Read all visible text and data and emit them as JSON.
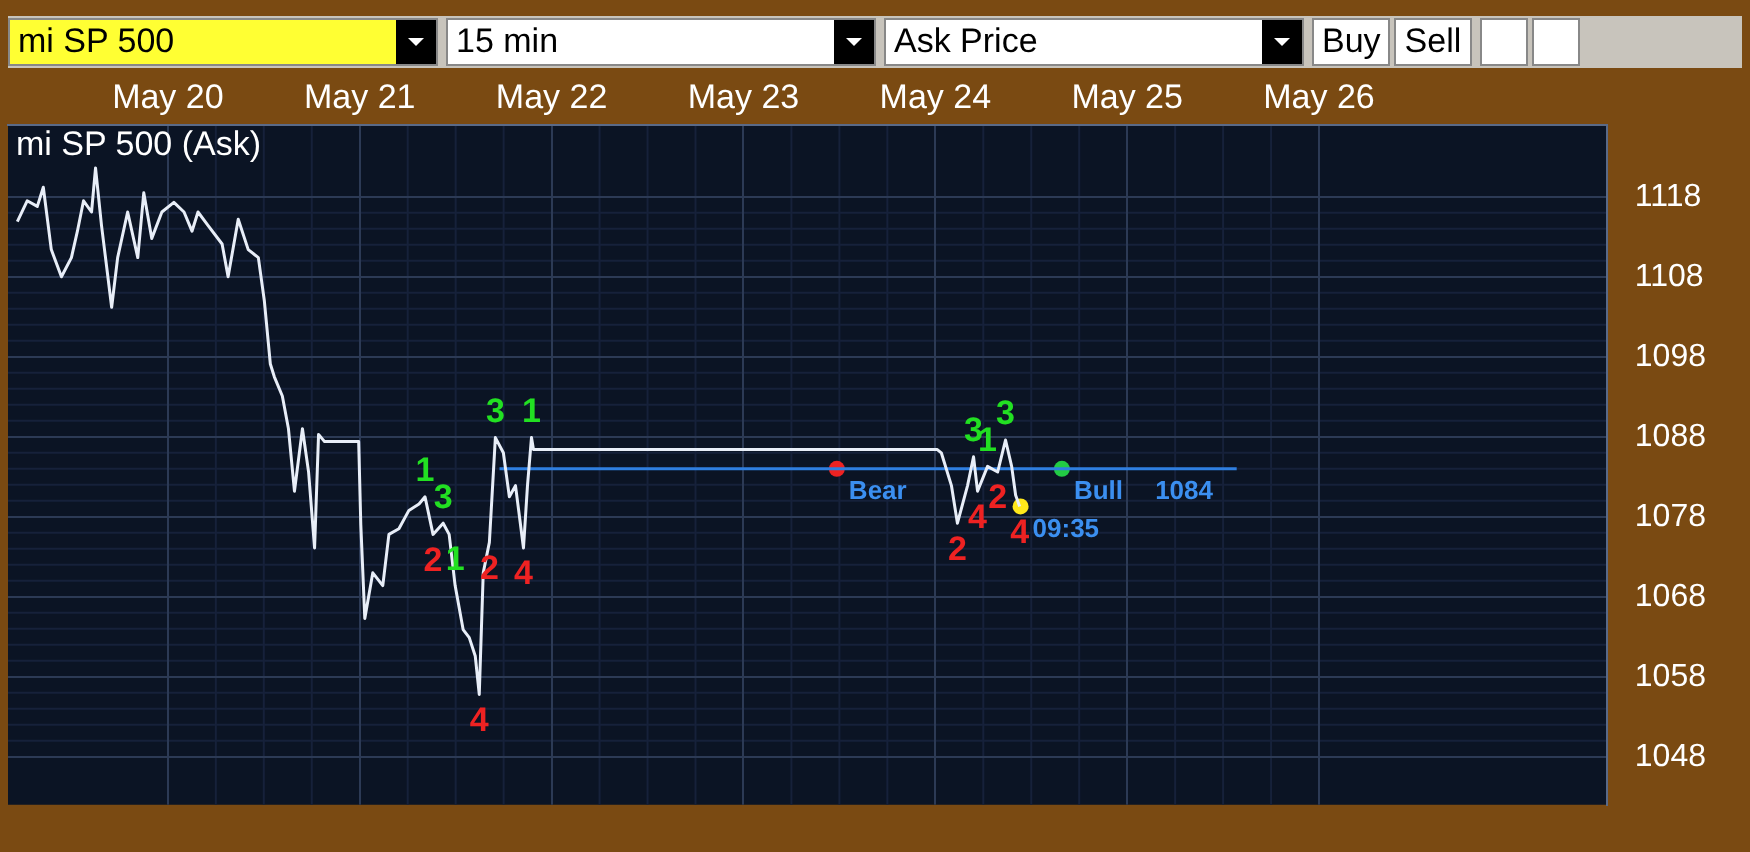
{
  "chart_data": {
    "type": "line",
    "title": "mi SP 500 (Ask)",
    "annotations": [
      "mi SP 500",
      "15 min",
      "Ask Price",
      "Buy",
      "Sell",
      {
        "text": "1",
        "x": "--05-21T08:10",
        "y": 1080.5
      },
      {
        "text": "2",
        "x": "--05-21T09:10",
        "y": 1075.8
      },
      {
        "text": "3",
        "x": "--05-21T10:26",
        "y": 1077.2
      },
      {
        "text": "1",
        "x": "--05-21T11:56",
        "y": 1069.4
      },
      {
        "text": "4",
        "x": "--05-21T14:57",
        "y": 1055.8
      },
      {
        "text": "2",
        "x": "--05-21T16:13",
        "y": 1074.8
      },
      {
        "text": "3",
        "x": "--05-21T16:58",
        "y": 1087.9
      },
      {
        "text": "4",
        "x": "--05-21T20:29",
        "y": 1074.1
      },
      {
        "text": "1",
        "x": "--05-21T21:29",
        "y": 1087.9
      },
      {
        "text": "2",
        "x": "--05-24T02:46",
        "y": 1077.2
      },
      {
        "text": "3",
        "x": "--05-24T04:47",
        "y": 1085.5
      },
      {
        "text": "4",
        "x": "--05-24T05:17",
        "y": 1081.2
      },
      {
        "text": "1",
        "x": "--05-24T06:32",
        "y": 1084.3
      },
      {
        "text": "2",
        "x": "--05-24T07:48",
        "y": 1083.6
      },
      {
        "text": "3",
        "x": "--05-24T08:47",
        "y": 1087.6
      },
      {
        "text": "4",
        "x": "--05-24T10:33",
        "y": 1079.3
      },
      {
        "text": "09:35",
        "x": "--05-24T10:40",
        "y": 1079.3
      },
      {
        "text": "Bear",
        "x": "--05-23T11:41",
        "y": 1084
      },
      {
        "text": "Bull",
        "x": "--05-24T15:50",
        "y": 1084
      },
      {
        "text": "1084",
        "x": "--05-25T02:00",
        "y": 1084
      }
    ],
    "xlim": [
      "--05-19T04:00",
      "--05-27T12:00"
    ],
    "xticks": [
      {
        "value": "--05-20",
        "label": "May 20"
      },
      {
        "value": "--05-21",
        "label": "May 21"
      },
      {
        "value": "--05-22",
        "label": "May 22"
      },
      {
        "value": "--05-23",
        "label": "May 23"
      },
      {
        "value": "--05-24",
        "label": "May 24"
      },
      {
        "value": "--05-25",
        "label": "May 25"
      },
      {
        "value": "--05-26",
        "label": "May 26"
      }
    ],
    "ylim": [
      1042,
      1127
    ],
    "yticks": [
      1048,
      1058,
      1068,
      1078,
      1088,
      1098,
      1108,
      1118
    ],
    "grid": true,
    "legend": false,
    "series": [
      {
        "type": "line",
        "color": "#e8eef8",
        "marker": "none",
        "x": [
          "--05-19T05:10",
          "--05-19T06:24",
          "--05-19T07:40",
          "--05-19T08:25",
          "--05-19T09:25",
          "--05-19T10:41",
          "--05-19T11:56",
          "--05-19T12:41",
          "--05-19T13:27",
          "--05-19T14:27",
          "--05-19T14:57",
          "--05-19T15:42",
          "--05-19T16:58",
          "--05-19T17:43",
          "--05-19T18:58",
          "--05-19T20:14",
          "--05-19T20:59",
          "--05-19T21:59",
          "--05-19T23:15",
          "--05-20T00:45",
          "--05-20T02:01",
          "--05-20T03:01",
          "--05-20T03:46",
          "--05-20T05:02",
          "--05-20T06:47",
          "--05-20T07:32",
          "--05-20T08:48",
          "--05-20T10:03",
          "--05-20T11:19",
          "--05-20T12:04",
          "--05-20T12:49",
          "--05-20T13:19",
          "--05-20T14:19",
          "--05-20T15:05",
          "--05-20T15:50",
          "--05-20T16:50",
          "--05-20T17:36",
          "--05-20T18:21",
          "--05-20T18:51",
          "--05-20T19:36",
          "--05-20T23:52",
          "--05-21T00:08",
          "--05-21T00:38",
          "--05-21T01:38",
          "--05-21T02:53",
          "--05-21T03:39",
          "--05-21T04:54",
          "--05-21T06:09",
          "--05-21T07:25",
          "--05-21T08:10",
          "--05-21T09:10",
          "--05-21T10:26",
          "--05-21T11:11",
          "--05-21T11:56",
          "--05-21T12:56",
          "--05-21T13:42",
          "--05-21T14:27",
          "--05-21T14:57",
          "--05-21T15:27",
          "--05-21T16:13",
          "--05-21T16:58",
          "--05-21T17:58",
          "--05-21T18:43",
          "--05-21T19:29",
          "--05-21T20:29",
          "--05-21T20:59",
          "--05-21T21:29",
          "--05-21T21:44",
          "--05-24T00:15",
          "--05-24T00:45",
          "--05-24T02:01",
          "--05-24T02:46",
          "--05-24T04:02",
          "--05-24T04:47",
          "--05-24T05:17",
          "--05-24T06:32",
          "--05-24T07:48",
          "--05-24T08:47",
          "--05-24T09:33",
          "--05-24T10:03",
          "--05-24T10:33"
        ],
        "values": [
          1114.9,
          1117.5,
          1116.8,
          1119.2,
          1111.4,
          1108,
          1110.4,
          1113.7,
          1117.5,
          1116.1,
          1121.6,
          1114.4,
          1104.2,
          1110.4,
          1116.1,
          1110.4,
          1118.5,
          1112.8,
          1116.1,
          1117.3,
          1116.1,
          1113.7,
          1116.1,
          1114.4,
          1112.1,
          1108,
          1115.2,
          1111.4,
          1110.4,
          1105,
          1097.1,
          1095.5,
          1093.1,
          1089,
          1081.2,
          1089,
          1083.6,
          1074.1,
          1088.3,
          1087.4,
          1087.4,
          1077,
          1065.3,
          1071,
          1069.4,
          1075.8,
          1076.5,
          1078.8,
          1079.6,
          1080.5,
          1075.8,
          1077.2,
          1075.8,
          1069.4,
          1063.9,
          1062.9,
          1060.6,
          1055.8,
          1071,
          1074.8,
          1087.9,
          1086,
          1080.5,
          1081.9,
          1074.1,
          1081.9,
          1087.9,
          1086.4,
          1086.4,
          1086,
          1081.9,
          1077.2,
          1081.9,
          1085.5,
          1081.2,
          1084.3,
          1083.6,
          1087.6,
          1084.3,
          1080.7,
          1079.3
        ]
      },
      {
        "type": "line",
        "color": "#2f7fe0",
        "marker": "none",
        "x": [
          "--05-21T17:29",
          "--05-25T13:42"
        ],
        "values": [
          1084,
          1084
        ]
      },
      {
        "type": "scatter",
        "color": "#ffe81a",
        "marker": "circle",
        "x": [
          "--05-24T10:40"
        ],
        "values": [
          1079.3
        ]
      },
      {
        "type": "scatter",
        "color": "#ee2222",
        "marker": "circle",
        "x": [
          "--05-23T11:41"
        ],
        "values": [
          1084
        ]
      },
      {
        "type": "scatter",
        "color": "#22cc44",
        "marker": "circle",
        "x": [
          "--05-24T15:50"
        ],
        "values": [
          1084
        ]
      }
    ]
  }
}
